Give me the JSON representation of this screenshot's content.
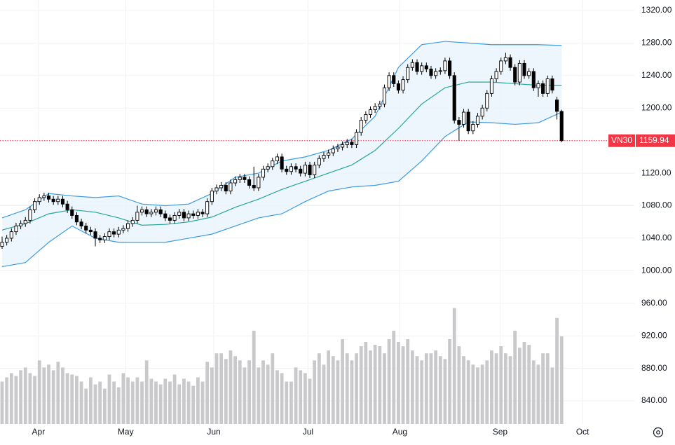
{
  "chart_data": {
    "type": "candlestick",
    "xlim": [
      -0.45,
      135.6
    ],
    "ylim": [
      811.6,
      1332.9
    ],
    "y2lim": [
      0,
      300
    ],
    "grid": true,
    "yticks": [
      {
        "value": 840,
        "label": "840.00"
      },
      {
        "value": 880,
        "label": "880.00"
      },
      {
        "value": 920,
        "label": "920.00"
      },
      {
        "value": 960,
        "label": "960.00"
      },
      {
        "value": 1000,
        "label": "1000.00"
      },
      {
        "value": 1040,
        "label": "1040.00"
      },
      {
        "value": 1080,
        "label": "1080.00"
      },
      {
        "value": 1120,
        "label": "1120.00"
      },
      {
        "value": 1160,
        "label": "1160.00"
      },
      {
        "value": 1200,
        "label": "1200.00"
      },
      {
        "value": 1240,
        "label": "1240.00"
      },
      {
        "value": 1280,
        "label": "1280.00"
      },
      {
        "value": 1320,
        "label": "1320.00"
      }
    ],
    "xticks": [
      {
        "value": 7.8,
        "label": "Apr"
      },
      {
        "value": 26.5,
        "label": "May"
      },
      {
        "value": 45.4,
        "label": "Jun"
      },
      {
        "value": 65.6,
        "label": "Jul"
      },
      {
        "value": 85.3,
        "label": "Aug"
      },
      {
        "value": 106.8,
        "label": "Sep"
      },
      {
        "value": 124.5,
        "label": "Oct"
      }
    ],
    "colors": {
      "up_fill": "#ffffff",
      "down_fill": "#000000",
      "wick": "#000000",
      "volume": "#c9c9cb",
      "band_upper": "#3d9be0",
      "band_lower": "#3d9be0",
      "band_middle": "#26a69a",
      "band_fill": "#e8f3fc",
      "last": "#f23645"
    },
    "ohlc": [
      [
        1030,
        1042,
        1027,
        1035
      ],
      [
        1035,
        1044,
        1031,
        1040
      ],
      [
        1040,
        1052,
        1036,
        1048
      ],
      [
        1048,
        1059,
        1044,
        1055
      ],
      [
        1055,
        1062,
        1051,
        1058
      ],
      [
        1058,
        1066,
        1054,
        1062
      ],
      [
        1062,
        1079,
        1058,
        1075
      ],
      [
        1075,
        1089,
        1071,
        1085
      ],
      [
        1085,
        1094,
        1081,
        1090
      ],
      [
        1090,
        1096,
        1086,
        1092
      ],
      [
        1092,
        1096,
        1084,
        1088
      ],
      [
        1088,
        1092,
        1081,
        1085
      ],
      [
        1085,
        1092,
        1081,
        1088
      ],
      [
        1088,
        1092,
        1078,
        1082
      ],
      [
        1082,
        1086,
        1071,
        1075
      ],
      [
        1075,
        1079,
        1064,
        1068
      ],
      [
        1068,
        1072,
        1056,
        1060
      ],
      [
        1060,
        1064,
        1051,
        1055
      ],
      [
        1055,
        1059,
        1046,
        1050
      ],
      [
        1050,
        1054,
        1044,
        1048
      ],
      [
        1048,
        1052,
        1030,
        1040
      ],
      [
        1040,
        1044,
        1034,
        1038
      ],
      [
        1038,
        1046,
        1034,
        1042
      ],
      [
        1042,
        1052,
        1038,
        1048
      ],
      [
        1048,
        1052,
        1041,
        1045
      ],
      [
        1045,
        1054,
        1041,
        1050
      ],
      [
        1050,
        1056,
        1046,
        1052
      ],
      [
        1052,
        1062,
        1048,
        1058
      ],
      [
        1058,
        1066,
        1054,
        1062
      ],
      [
        1062,
        1080,
        1058,
        1072
      ],
      [
        1072,
        1079,
        1068,
        1075
      ],
      [
        1075,
        1079,
        1066,
        1070
      ],
      [
        1070,
        1076,
        1066,
        1072
      ],
      [
        1072,
        1079,
        1068,
        1075
      ],
      [
        1075,
        1079,
        1066,
        1070
      ],
      [
        1070,
        1074,
        1061,
        1065
      ],
      [
        1065,
        1069,
        1058,
        1062
      ],
      [
        1062,
        1072,
        1058,
        1068
      ],
      [
        1068,
        1076,
        1064,
        1072
      ],
      [
        1072,
        1076,
        1061,
        1065
      ],
      [
        1065,
        1074,
        1061,
        1070
      ],
      [
        1070,
        1074,
        1064,
        1068
      ],
      [
        1068,
        1076,
        1064,
        1072
      ],
      [
        1072,
        1076,
        1066,
        1070
      ],
      [
        1070,
        1089,
        1066,
        1085
      ],
      [
        1085,
        1102,
        1081,
        1098
      ],
      [
        1098,
        1106,
        1094,
        1102
      ],
      [
        1102,
        1109,
        1098,
        1105
      ],
      [
        1105,
        1109,
        1094,
        1098
      ],
      [
        1098,
        1112,
        1094,
        1108
      ],
      [
        1108,
        1116,
        1104,
        1112
      ],
      [
        1112,
        1119,
        1108,
        1115
      ],
      [
        1115,
        1119,
        1108,
        1112
      ],
      [
        1112,
        1116,
        1101,
        1105
      ],
      [
        1105,
        1128,
        1098,
        1102
      ],
      [
        1102,
        1119,
        1098,
        1115
      ],
      [
        1115,
        1129,
        1111,
        1125
      ],
      [
        1125,
        1132,
        1121,
        1128
      ],
      [
        1128,
        1139,
        1124,
        1135
      ],
      [
        1135,
        1144,
        1131,
        1140
      ],
      [
        1140,
        1144,
        1121,
        1125
      ],
      [
        1125,
        1129,
        1118,
        1122
      ],
      [
        1122,
        1132,
        1118,
        1128
      ],
      [
        1128,
        1132,
        1121,
        1125
      ],
      [
        1125,
        1129,
        1116,
        1120
      ],
      [
        1120,
        1134,
        1116,
        1130
      ],
      [
        1130,
        1134,
        1114,
        1118
      ],
      [
        1118,
        1134,
        1114,
        1130
      ],
      [
        1130,
        1142,
        1126,
        1138
      ],
      [
        1138,
        1146,
        1134,
        1142
      ],
      [
        1142,
        1149,
        1138,
        1145
      ],
      [
        1145,
        1154,
        1141,
        1150
      ],
      [
        1150,
        1156,
        1146,
        1152
      ],
      [
        1152,
        1159,
        1148,
        1155
      ],
      [
        1155,
        1162,
        1151,
        1158
      ],
      [
        1158,
        1162,
        1151,
        1155
      ],
      [
        1155,
        1174,
        1151,
        1170
      ],
      [
        1170,
        1189,
        1166,
        1185
      ],
      [
        1185,
        1196,
        1181,
        1192
      ],
      [
        1192,
        1202,
        1188,
        1198
      ],
      [
        1198,
        1206,
        1194,
        1202
      ],
      [
        1202,
        1209,
        1198,
        1205
      ],
      [
        1205,
        1229,
        1201,
        1225
      ],
      [
        1225,
        1244,
        1221,
        1240
      ],
      [
        1240,
        1244,
        1226,
        1230
      ],
      [
        1230,
        1234,
        1218,
        1222
      ],
      [
        1222,
        1239,
        1218,
        1235
      ],
      [
        1235,
        1254,
        1231,
        1250
      ],
      [
        1250,
        1260,
        1246,
        1256
      ],
      [
        1256,
        1260,
        1241,
        1245
      ],
      [
        1245,
        1256,
        1241,
        1252
      ],
      [
        1252,
        1256,
        1244,
        1248
      ],
      [
        1248,
        1252,
        1236,
        1240
      ],
      [
        1240,
        1249,
        1236,
        1245
      ],
      [
        1245,
        1250,
        1241,
        1246
      ],
      [
        1246,
        1262,
        1242,
        1258
      ],
      [
        1258,
        1262,
        1236,
        1240
      ],
      [
        1240,
        1244,
        1181,
        1185
      ],
      [
        1185,
        1189,
        1160,
        1180
      ],
      [
        1180,
        1199,
        1176,
        1195
      ],
      [
        1195,
        1199,
        1168,
        1172
      ],
      [
        1172,
        1184,
        1168,
        1180
      ],
      [
        1180,
        1194,
        1176,
        1190
      ],
      [
        1190,
        1204,
        1186,
        1200
      ],
      [
        1200,
        1222,
        1196,
        1218
      ],
      [
        1218,
        1240,
        1214,
        1236
      ],
      [
        1236,
        1249,
        1232,
        1245
      ],
      [
        1245,
        1262,
        1241,
        1258
      ],
      [
        1258,
        1268,
        1254,
        1262
      ],
      [
        1262,
        1266,
        1246,
        1250
      ],
      [
        1250,
        1254,
        1228,
        1232
      ],
      [
        1232,
        1259,
        1228,
        1255
      ],
      [
        1255,
        1259,
        1236,
        1240
      ],
      [
        1240,
        1249,
        1236,
        1245
      ],
      [
        1245,
        1249,
        1221,
        1225
      ],
      [
        1225,
        1234,
        1214,
        1230
      ],
      [
        1230,
        1234,
        1214,
        1218
      ],
      [
        1218,
        1240,
        1214,
        1236
      ],
      [
        1236,
        1240,
        1218,
        1222
      ],
      [
        1210,
        1214,
        1186,
        1196
      ],
      [
        1196,
        1198,
        1158,
        1159.94
      ]
    ],
    "volume": [
      30,
      33,
      36,
      34,
      38,
      40,
      36,
      34,
      45,
      40,
      42,
      38,
      44,
      40,
      36,
      35,
      34,
      30,
      25,
      33,
      28,
      30,
      25,
      35,
      30,
      26,
      36,
      33,
      30,
      33,
      30,
      45,
      32,
      30,
      28,
      32,
      30,
      35,
      28,
      32,
      30,
      27,
      33,
      30,
      44,
      40,
      50,
      50,
      46,
      52,
      48,
      45,
      40,
      45,
      66,
      40,
      45,
      42,
      50,
      38,
      36,
      30,
      30,
      40,
      38,
      36,
      32,
      45,
      50,
      42,
      52,
      48,
      45,
      60,
      50,
      45,
      50,
      55,
      58,
      52,
      56,
      55,
      50,
      60,
      66,
      58,
      55,
      60,
      52,
      48,
      45,
      50,
      50,
      52,
      48,
      46,
      60,
      82,
      55,
      48,
      45,
      42,
      40,
      42,
      45,
      52,
      50,
      55,
      50,
      48,
      66,
      54,
      58,
      56,
      45,
      42,
      50,
      50,
      40,
      75,
      62
    ],
    "bands": {
      "x": [
        0,
        5,
        10,
        15,
        20,
        25,
        30,
        35,
        40,
        45,
        50,
        55,
        60,
        65,
        70,
        75,
        80,
        85,
        90,
        95,
        100,
        105,
        110,
        115,
        120
      ],
      "upper": [
        1065,
        1075,
        1095,
        1092,
        1090,
        1092,
        1082,
        1080,
        1082,
        1095,
        1115,
        1120,
        1135,
        1140,
        1148,
        1162,
        1190,
        1250,
        1278,
        1282,
        1280,
        1278,
        1278,
        1278,
        1277
      ],
      "middle": [
        1050,
        1058,
        1070,
        1075,
        1072,
        1065,
        1056,
        1057,
        1060,
        1066,
        1078,
        1088,
        1100,
        1110,
        1120,
        1130,
        1148,
        1175,
        1205,
        1225,
        1232,
        1232,
        1230,
        1228,
        1228
      ],
      "lower": [
        1005,
        1010,
        1035,
        1055,
        1040,
        1035,
        1035,
        1035,
        1040,
        1045,
        1055,
        1065,
        1070,
        1085,
        1098,
        1103,
        1105,
        1110,
        1135,
        1165,
        1183,
        1182,
        1180,
        1182,
        1195
      ]
    },
    "last_price": {
      "symbol": "VN30",
      "value": 1159.94
    }
  }
}
